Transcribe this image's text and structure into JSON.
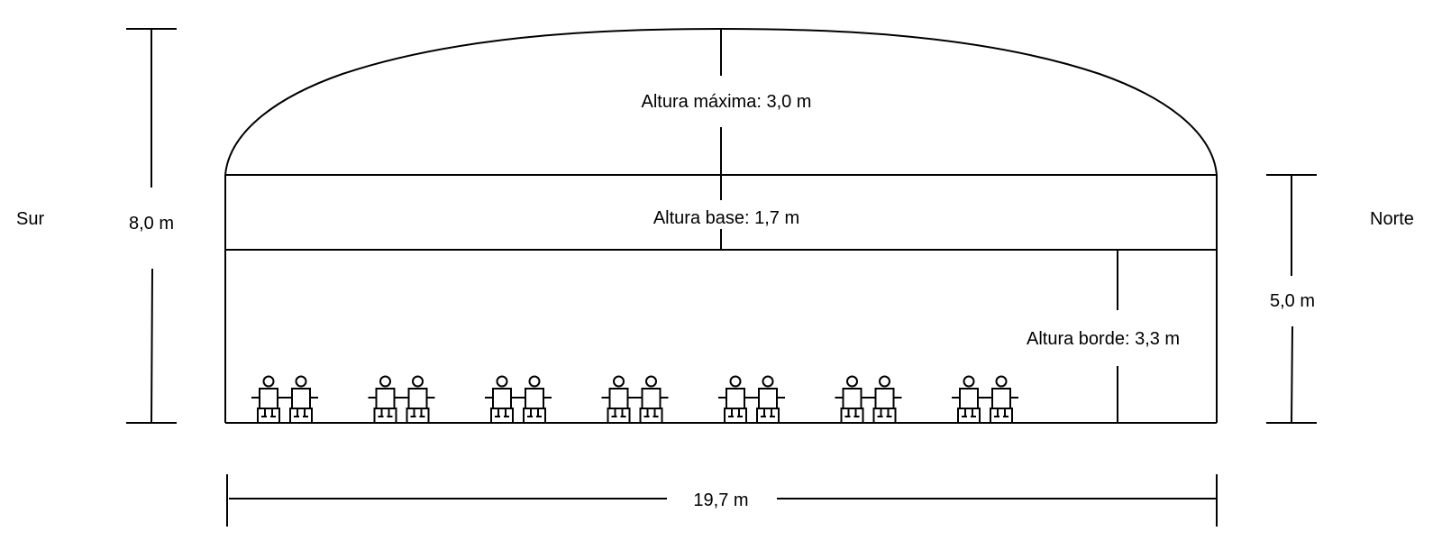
{
  "labels": {
    "south": "Sur",
    "north": "Norte",
    "total_height": "8,0 m",
    "max_height": "Altura máxima: 3,0 m",
    "base_height": "Altura base: 1,7 m",
    "edge_height": "Altura borde: 3,3 m",
    "side_height": "5,0 m",
    "width": "19,7 m"
  },
  "pairs": 7,
  "colors": {
    "line": "#000000",
    "background": "#ffffff"
  }
}
